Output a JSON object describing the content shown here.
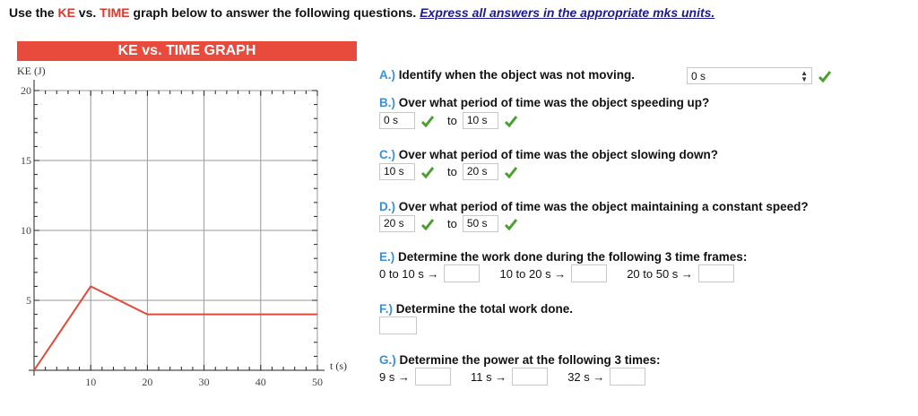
{
  "instructions": {
    "part1": "Use the ",
    "ke": "KE",
    "part2": " vs. ",
    "time": "TIME",
    "part3": " graph below to answer the following questions. ",
    "emphasis": "Express all answers in the appropriate mks units."
  },
  "graph_header": "KE vs. TIME GRAPH",
  "chart_data": {
    "type": "line",
    "title": "KE vs. TIME GRAPH",
    "xlabel": "t (s)",
    "ylabel": "KE (J)",
    "xlim": [
      0,
      50
    ],
    "ylim": [
      0,
      20
    ],
    "x_ticks": [
      "10",
      "20",
      "30",
      "40",
      "50"
    ],
    "y_ticks": [
      "5",
      "10",
      "15",
      "20"
    ],
    "grid": true,
    "series": [
      {
        "x": [
          0,
          10,
          20,
          50
        ],
        "y": [
          0,
          6,
          4,
          4
        ],
        "color": "#e04a3a"
      }
    ]
  },
  "questions": {
    "a": {
      "letter": "A.)",
      "text": " Identify when the object was not moving.",
      "select_value": "0 s"
    },
    "b": {
      "letter": "B.)",
      "text": " Over what period of time was the object speeding up?",
      "from": "0 s",
      "to_label": "to",
      "to": "10 s"
    },
    "c": {
      "letter": "C.)",
      "text": " Over what period of time was the object slowing down?",
      "from": "10 s",
      "to_label": "to",
      "to": "20 s"
    },
    "d": {
      "letter": "D.)",
      "text": " Over what period of time was the object maintaining a constant speed?",
      "from": "20 s",
      "to_label": "to",
      "to": "50 s"
    },
    "e": {
      "letter": "E.)",
      "text": " Determine the work done during the following 3 time frames:",
      "labels": [
        "0 to 10 s →",
        "10 to 20 s →",
        "20 to 50 s →"
      ]
    },
    "f": {
      "letter": "F.)",
      "text": " Determine the total work done."
    },
    "g": {
      "letter": "G.)",
      "text": " Determine the power at the following 3 times:",
      "labels": [
        "9 s →",
        "11 s →",
        "32 s →"
      ]
    }
  },
  "colors": {
    "correct": "#4aa02c",
    "accent_red": "#d9382c",
    "letter_blue": "#3a8fd9",
    "header_bg": "#e84a3c"
  }
}
